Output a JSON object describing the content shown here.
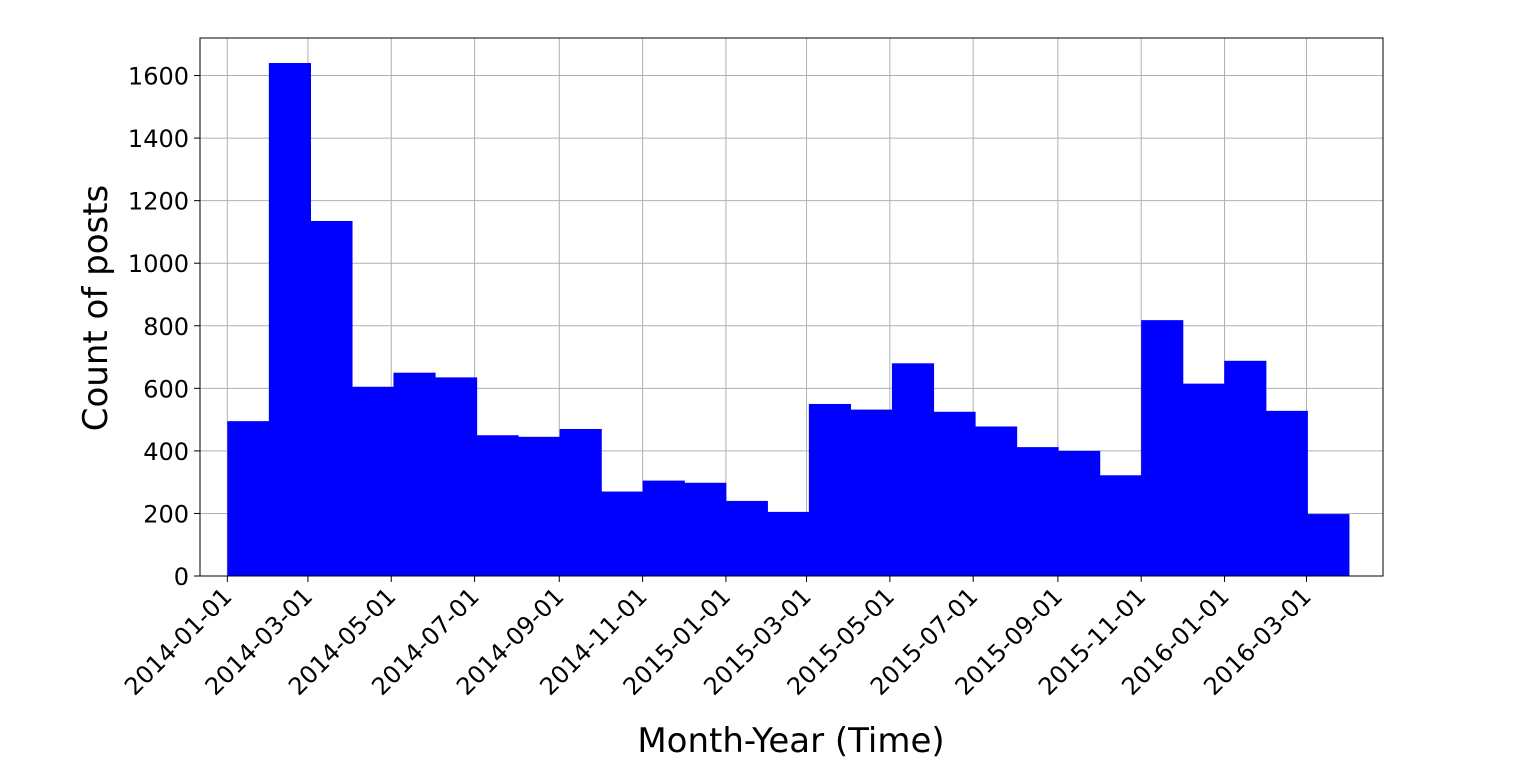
{
  "chart_data": {
    "type": "bar",
    "title": "",
    "xlabel": "Month-Year (Time)",
    "ylabel": "Count of posts",
    "ylim": [
      0,
      1720
    ],
    "xlim": [
      "2013-12-12",
      "2016-04-26"
    ],
    "grid": true,
    "bar_color": "#0000ff",
    "x_tick_labels": [
      "2014-01-01",
      "2014-03-01",
      "2014-05-01",
      "2014-07-01",
      "2014-09-01",
      "2014-11-01",
      "2015-01-01",
      "2015-03-01",
      "2015-05-01",
      "2015-07-01",
      "2015-09-01",
      "2015-11-01",
      "2016-01-01",
      "2016-03-01"
    ],
    "y_ticks": [
      0,
      200,
      400,
      600,
      800,
      1000,
      1200,
      1400,
      1600
    ],
    "categories": [
      "2014-01",
      "2014-02",
      "2014-03",
      "2014-04",
      "2014-05",
      "2014-06",
      "2014-07",
      "2014-08",
      "2014-09",
      "2014-10",
      "2014-11",
      "2014-12",
      "2015-01",
      "2015-02",
      "2015-03",
      "2015-04",
      "2015-05",
      "2015-06",
      "2015-07",
      "2015-08",
      "2015-09",
      "2015-10",
      "2015-11",
      "2015-12",
      "2016-01",
      "2016-02",
      "2016-03"
    ],
    "values": [
      495,
      1640,
      1135,
      605,
      650,
      635,
      450,
      445,
      470,
      270,
      305,
      298,
      240,
      205,
      550,
      532,
      680,
      525,
      478,
      412,
      400,
      322,
      818,
      615,
      688,
      528,
      198
    ]
  }
}
